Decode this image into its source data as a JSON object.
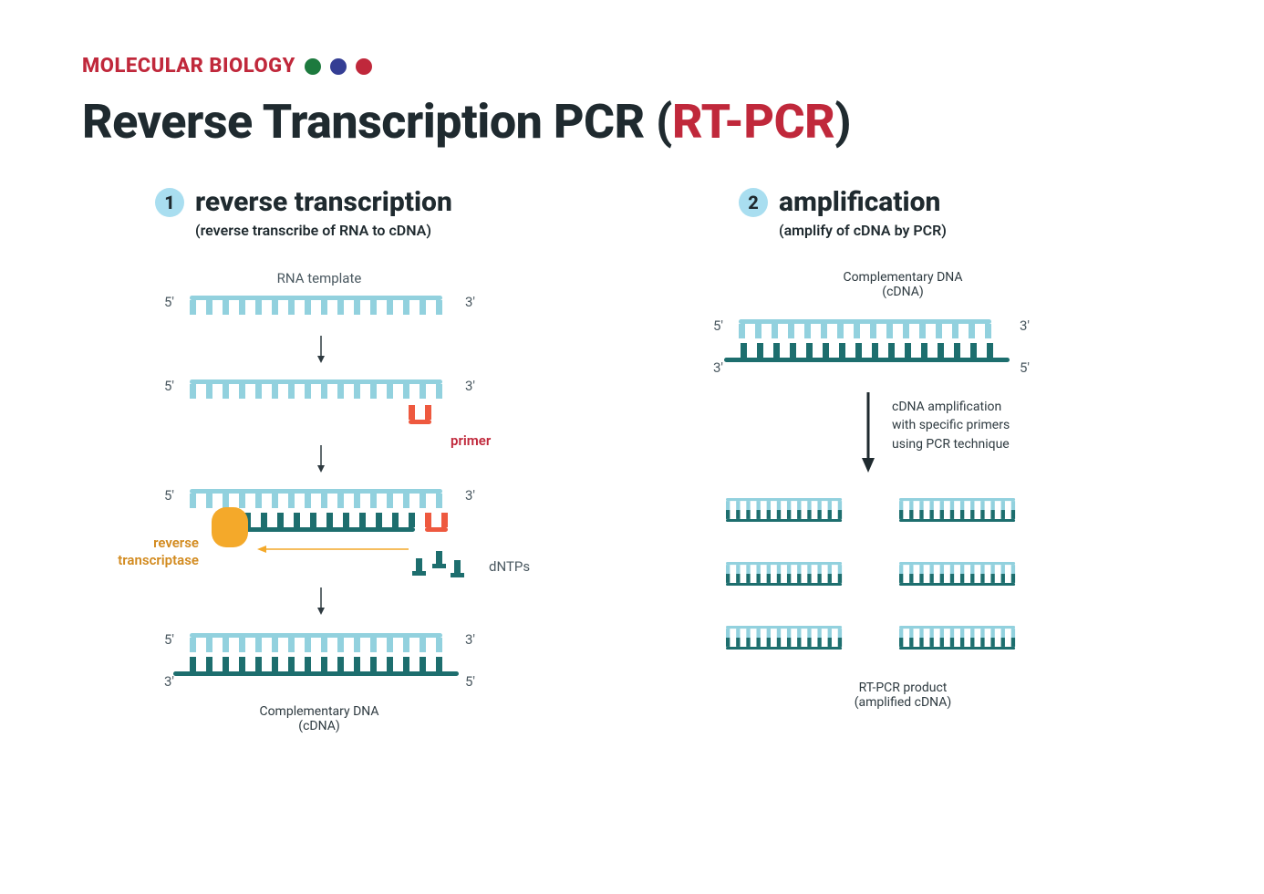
{
  "colors": {
    "red": "#c0283b",
    "green_dot": "#1d7a3e",
    "navy_dot": "#343e94",
    "red_dot": "#c0283b",
    "text": "#1f2a2f",
    "sub_text": "#4a5860",
    "light_blue": "#92d1de",
    "teal": "#1d6e6e",
    "primer_red": "#ee593f",
    "enzyme": "#f4a92a",
    "step_circle_bg": "#a9def0",
    "arrow": "#2e3a40",
    "bg": "#ffffff"
  },
  "eyebrow": {
    "text": "MOLECULAR BIOLOGY",
    "color": "#c0283b",
    "fontsize": 22
  },
  "title": {
    "prefix": "Reverse Transcription PCR (",
    "highlight": "RT-PCR",
    "suffix": ")",
    "highlight_color": "#c0283b",
    "fontsize": 52
  },
  "step1": {
    "num": "1",
    "title": "reverse transcription",
    "sub": "(reverse transcribe of RNA to cDNA)",
    "labels": {
      "rna_template": "RNA template",
      "primer": "primer",
      "reverse_transcriptase": "reverse\ntranscriptase",
      "dntps": "dNTPs",
      "cdna": "Complementary DNA\n(cDNA)",
      "five": "5'",
      "three": "3'"
    }
  },
  "step2": {
    "num": "2",
    "title": "amplification",
    "sub": "(amplify of cDNA by PCR)",
    "labels": {
      "cdna": "Complementary DNA\n(cDNA)",
      "arrow_text": "cDNA amplification\nwith specific primers\nusing PCR technique",
      "product": "RT-PCR product\n(amplified cDNA)",
      "five": "5'",
      "three": "3'"
    }
  },
  "strand": {
    "teeth": 16,
    "tooth_w": 7,
    "tooth_h": 16,
    "gap": 11,
    "backbone_h": 5,
    "small_teeth": 12,
    "small_scale": 0.62
  }
}
